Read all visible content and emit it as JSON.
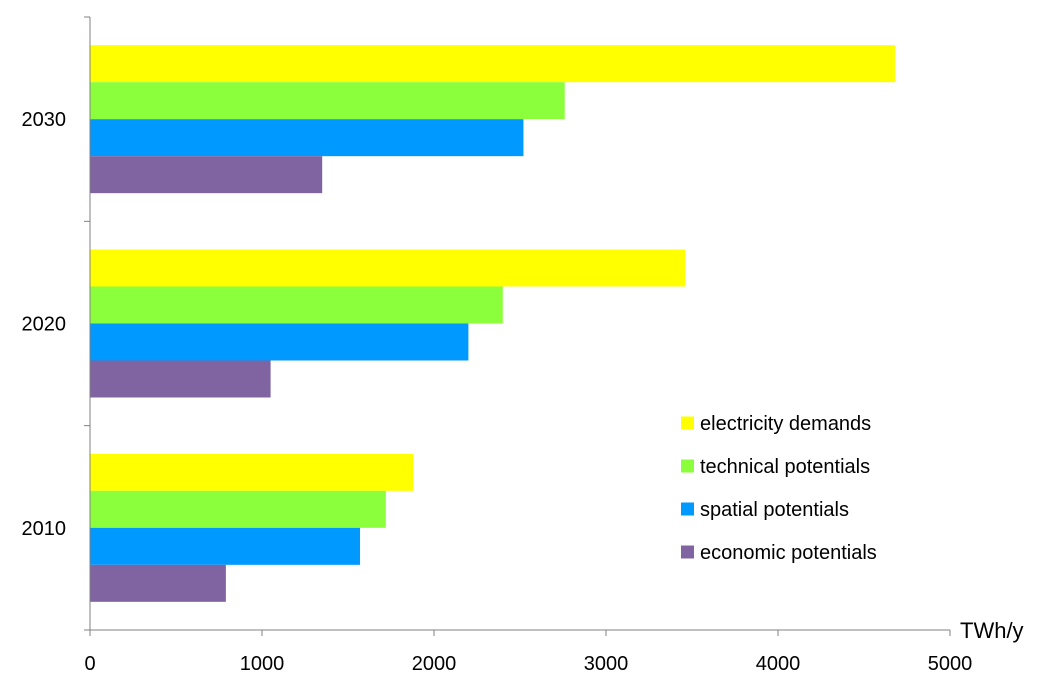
{
  "chart_data": {
    "type": "bar",
    "orientation": "horizontal",
    "categories": [
      "2010",
      "2020",
      "2030"
    ],
    "xlabel": "TWh/y",
    "ylabel": "",
    "title": "",
    "xlim": [
      0,
      5000
    ],
    "xticks": [
      0,
      1000,
      2000,
      3000,
      4000,
      5000
    ],
    "grid": false,
    "legend_position": "right",
    "series": [
      {
        "name": "electricity demands",
        "color": "#FFFF00",
        "values": [
          1880,
          3460,
          4680
        ]
      },
      {
        "name": "technical potentials",
        "color": "#8CFF3C",
        "values": [
          1720,
          2400,
          2760
        ]
      },
      {
        "name": "spatial potentials",
        "color": "#0099FF",
        "values": [
          1570,
          2200,
          2520
        ]
      },
      {
        "name": "economic potentials",
        "color": "#8064A2",
        "values": [
          790,
          1050,
          1350
        ]
      }
    ]
  }
}
